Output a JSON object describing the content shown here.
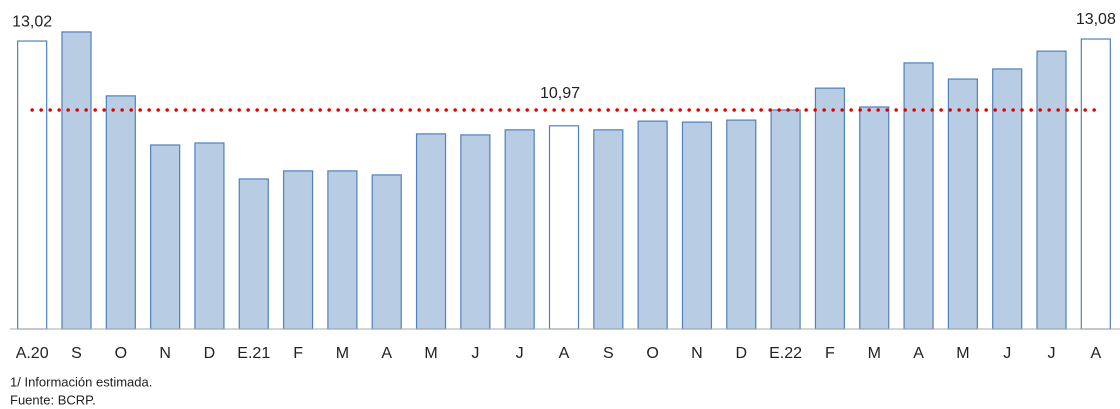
{
  "chart_data": {
    "type": "bar",
    "categories": [
      "A.20",
      "S",
      "O",
      "N",
      "D",
      "E.21",
      "F",
      "M",
      "A",
      "M",
      "J",
      "J",
      "A",
      "S",
      "O",
      "N",
      "D",
      "E.22",
      "F",
      "M",
      "A",
      "M",
      "J",
      "J",
      "A"
    ],
    "values": [
      13.02,
      13.29,
      11.39,
      9.93,
      9.99,
      8.92,
      9.16,
      9.16,
      9.04,
      10.26,
      10.23,
      10.38,
      10.5,
      10.38,
      10.64,
      10.61,
      10.67,
      10.97,
      11.62,
      11.06,
      12.37,
      11.89,
      12.19,
      12.72,
      13.08
    ],
    "value_labels": [
      "13,02",
      null,
      null,
      null,
      null,
      null,
      null,
      null,
      null,
      null,
      null,
      null,
      null,
      null,
      null,
      null,
      null,
      null,
      null,
      null,
      null,
      null,
      null,
      null,
      "13,08"
    ],
    "colors": [
      "#ffffff",
      "#b8cce4",
      "#b8cce4",
      "#b8cce4",
      "#b8cce4",
      "#b8cce4",
      "#b8cce4",
      "#b8cce4",
      "#b8cce4",
      "#b8cce4",
      "#b8cce4",
      "#b8cce4",
      "#ffffff",
      "#b8cce4",
      "#b8cce4",
      "#b8cce4",
      "#b8cce4",
      "#b8cce4",
      "#b8cce4",
      "#b8cce4",
      "#b8cce4",
      "#b8cce4",
      "#b8cce4",
      "#b8cce4",
      "#ffffff"
    ],
    "edge_color": "#4f81bd",
    "ylim": [
      4.46,
      14.24
    ],
    "reference_line": {
      "value": 10.97,
      "label": "10,97",
      "color": "#e00000"
    },
    "notes": [
      "1/ Información estimada.",
      "Fuente: BCRP."
    ]
  }
}
